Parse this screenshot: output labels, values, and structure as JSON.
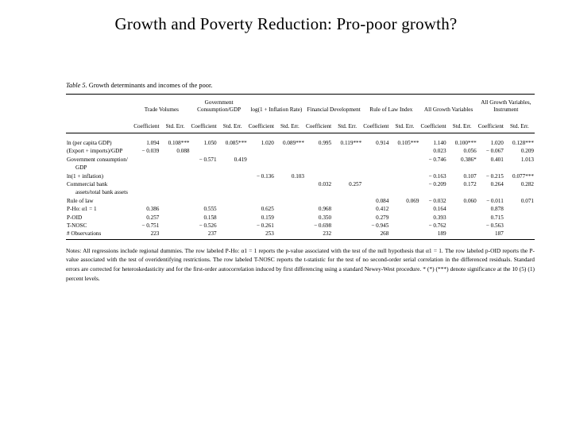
{
  "slide": {
    "title": "Growth and Poverty Reduction: Pro-poor growth?"
  },
  "table": {
    "label": "Table 5.",
    "caption": "Growth determinants and incomes of the poor.",
    "groups": [
      "Trade Volumes",
      "Government Consumption/GDP",
      "log(1 + Inflation Rate)",
      "Financial Development",
      "Rule of Law Index",
      "All Growth Variables",
      "All Growth Variables, Instrument"
    ],
    "subheaders": [
      "Coefficient",
      "Std. Err.",
      "Coefficient",
      "Std. Err.",
      "Coefficient",
      "Std. Err.",
      "Coefficient",
      "Std. Err.",
      "Coefficient",
      "Std. Err.",
      "Coefficient",
      "Std. Err.",
      "Coefficient",
      "Std. Err."
    ],
    "rows": [
      {
        "label": "ln (per capita GDP)",
        "cells": [
          "1.094",
          "0.108***",
          "1.050",
          "0.085***",
          "1.020",
          "0.089***",
          "0.995",
          "0.119***",
          "0.914",
          "0.105***",
          "1.140",
          "0.100***",
          "1.020",
          "0.128***"
        ]
      },
      {
        "label": "(Export + imports)/GDP",
        "cells": [
          "− 0.039",
          "0.088",
          "",
          "",
          "",
          "",
          "",
          "",
          "",
          "",
          "0.023",
          "0.056",
          "− 0.067",
          "0.209"
        ]
      },
      {
        "label": "Government consumption/",
        "cells": [
          "",
          "",
          "− 0.571",
          "0.419",
          "",
          "",
          "",
          "",
          "",
          "",
          "− 0.746",
          "0.386*",
          "0.401",
          "1.013"
        ]
      },
      {
        "label": "GDP",
        "indent": true,
        "cells": [
          "",
          "",
          "",
          "",
          "",
          "",
          "",
          "",
          "",
          "",
          "",
          "",
          "",
          ""
        ]
      },
      {
        "label": "ln(1 + inflation)",
        "cells": [
          "",
          "",
          "",
          "",
          "− 0.136",
          "0.103",
          "",
          "",
          "",
          "",
          "− 0.163",
          "0.107",
          "− 0.215",
          "0.077***"
        ]
      },
      {
        "label": "Commercial bank",
        "cells": [
          "",
          "",
          "",
          "",
          "",
          "",
          "0.032",
          "0.257",
          "",
          "",
          "− 0.209",
          "0.172",
          "0.264",
          "0.282"
        ]
      },
      {
        "label": "assets/total bank assets",
        "indent": true,
        "cells": [
          "",
          "",
          "",
          "",
          "",
          "",
          "",
          "",
          "",
          "",
          "",
          "",
          "",
          ""
        ]
      },
      {
        "label": "Rule of law",
        "cells": [
          "",
          "",
          "",
          "",
          "",
          "",
          "",
          "",
          "0.084",
          "0.069",
          "− 0.032",
          "0.060",
          "− 0.011",
          "0.071"
        ]
      },
      {
        "label": "P-Ho: α1 = 1",
        "cells": [
          "0.386",
          "",
          "0.555",
          "",
          "0.625",
          "",
          "0.968",
          "",
          "0.412",
          "",
          "0.164",
          "",
          "0.878",
          ""
        ]
      },
      {
        "label": "P-OID",
        "cells": [
          "0.257",
          "",
          "0.158",
          "",
          "0.159",
          "",
          "0.350",
          "",
          "0.279",
          "",
          "0.393",
          "",
          "0.715",
          ""
        ]
      },
      {
        "label": "T-NOSC",
        "cells": [
          "− 0.751",
          "",
          "− 0.526",
          "",
          "− 0.261",
          "",
          "− 0.698",
          "",
          "− 0.945",
          "",
          "− 0.762",
          "",
          "− 0.563",
          ""
        ]
      },
      {
        "label": "# Observations",
        "cells": [
          "223",
          "",
          "237",
          "",
          "253",
          "",
          "232",
          "",
          "268",
          "",
          "189",
          "",
          "187",
          ""
        ]
      }
    ],
    "bold_rows": [
      0,
      8
    ],
    "notes": "Notes: All regressions include regional dummies. The row labeled P-Ho: α1 = 1 reports the p-value associated with the test of the null hypothesis that α1 = 1. The row labeled p-OID reports the P-value associated with the test of overidentifying restrictions. The row labeled T-NOSC reports the t-statistic for the test of no second-order serial correlation in the differenced residuals. Standard errors are corrected for heteroskedasticity and for the first-order autocorrelation induced by first differencing using a standard Newey-West procedure. * (*) (***) denote significance at the 10 (5) (1) percent levels."
  }
}
